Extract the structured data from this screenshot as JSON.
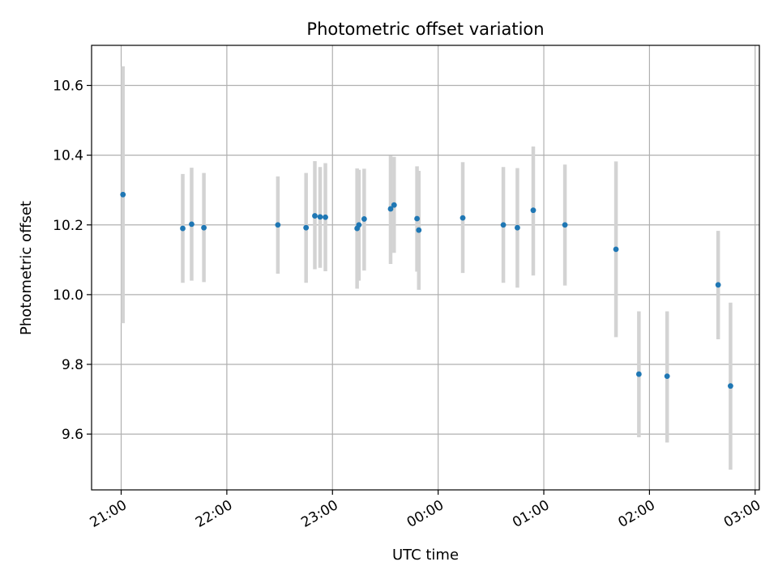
{
  "chart_data": {
    "type": "scatter",
    "title": "Photometric offset variation",
    "xlabel": "UTC time",
    "ylabel": "Photometric offset",
    "x_unit": "hours",
    "xlim": [
      20.72,
      27.04
    ],
    "ylim": [
      9.44,
      10.715
    ],
    "x_ticks": [
      {
        "value": 21,
        "label": "21:00"
      },
      {
        "value": 22,
        "label": "22:00"
      },
      {
        "value": 23,
        "label": "23:00"
      },
      {
        "value": 24,
        "label": "00:00"
      },
      {
        "value": 25,
        "label": "01:00"
      },
      {
        "value": 26,
        "label": "02:00"
      },
      {
        "value": 27,
        "label": "03:00"
      }
    ],
    "y_ticks": [
      {
        "value": 9.6,
        "label": "9.6"
      },
      {
        "value": 9.8,
        "label": "9.8"
      },
      {
        "value": 10.0,
        "label": "10.0"
      },
      {
        "value": 10.2,
        "label": "10.2"
      },
      {
        "value": 10.4,
        "label": "10.4"
      },
      {
        "value": 10.6,
        "label": "10.6"
      }
    ],
    "grid": true,
    "colors": {
      "point": "#1f77b4",
      "errorbar": "#d3d3d3",
      "grid": "#b0b0b0"
    },
    "points": [
      {
        "x": 21.017,
        "y": 10.287,
        "lo": 9.918,
        "hi": 10.655
      },
      {
        "x": 21.583,
        "y": 10.19,
        "lo": 10.034,
        "hi": 10.346
      },
      {
        "x": 21.667,
        "y": 10.202,
        "lo": 10.04,
        "hi": 10.364
      },
      {
        "x": 21.783,
        "y": 10.192,
        "lo": 10.036,
        "hi": 10.349
      },
      {
        "x": 22.483,
        "y": 10.2,
        "lo": 10.06,
        "hi": 10.339
      },
      {
        "x": 22.75,
        "y": 10.192,
        "lo": 10.034,
        "hi": 10.349
      },
      {
        "x": 22.833,
        "y": 10.226,
        "lo": 10.073,
        "hi": 10.383
      },
      {
        "x": 22.883,
        "y": 10.223,
        "lo": 10.077,
        "hi": 10.366
      },
      {
        "x": 22.933,
        "y": 10.222,
        "lo": 10.067,
        "hi": 10.377
      },
      {
        "x": 23.233,
        "y": 10.19,
        "lo": 10.017,
        "hi": 10.362
      },
      {
        "x": 23.25,
        "y": 10.2,
        "lo": 10.04,
        "hi": 10.358
      },
      {
        "x": 23.3,
        "y": 10.217,
        "lo": 10.069,
        "hi": 10.361
      },
      {
        "x": 23.55,
        "y": 10.246,
        "lo": 10.088,
        "hi": 10.399
      },
      {
        "x": 23.583,
        "y": 10.257,
        "lo": 10.12,
        "hi": 10.395
      },
      {
        "x": 23.8,
        "y": 10.218,
        "lo": 10.066,
        "hi": 10.368
      },
      {
        "x": 23.817,
        "y": 10.185,
        "lo": 10.014,
        "hi": 10.355
      },
      {
        "x": 24.233,
        "y": 10.22,
        "lo": 10.062,
        "hi": 10.38
      },
      {
        "x": 24.617,
        "y": 10.2,
        "lo": 10.034,
        "hi": 10.366
      },
      {
        "x": 24.75,
        "y": 10.192,
        "lo": 10.02,
        "hi": 10.363
      },
      {
        "x": 24.9,
        "y": 10.242,
        "lo": 10.055,
        "hi": 10.425
      },
      {
        "x": 25.2,
        "y": 10.2,
        "lo": 10.026,
        "hi": 10.373
      },
      {
        "x": 25.683,
        "y": 10.13,
        "lo": 9.878,
        "hi": 10.382
      },
      {
        "x": 25.9,
        "y": 9.772,
        "lo": 9.591,
        "hi": 9.952
      },
      {
        "x": 26.167,
        "y": 9.766,
        "lo": 9.576,
        "hi": 9.952
      },
      {
        "x": 26.65,
        "y": 10.028,
        "lo": 9.872,
        "hi": 10.183
      },
      {
        "x": 26.767,
        "y": 9.738,
        "lo": 9.498,
        "hi": 9.977
      }
    ]
  }
}
